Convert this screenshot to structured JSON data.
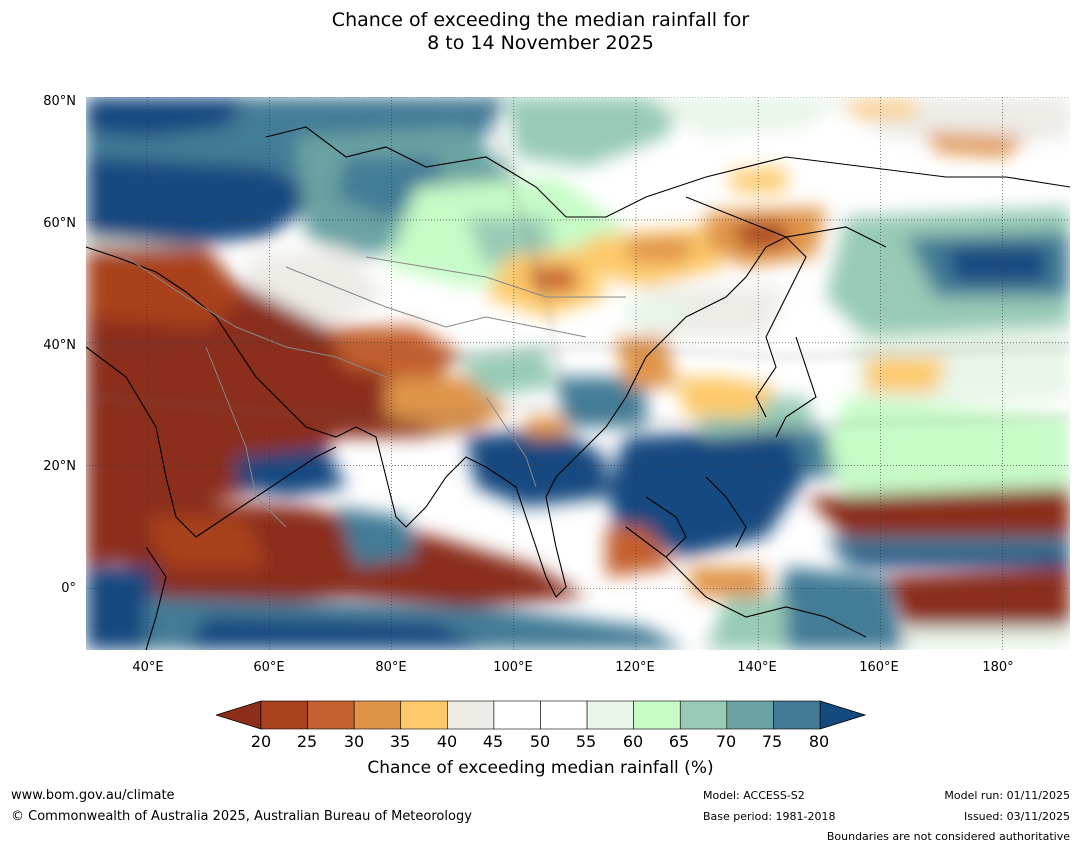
{
  "title": {
    "line1": "Chance of exceeding the median rainfall for",
    "line2": "8 to 14 November 2025"
  },
  "map": {
    "lat_labels": [
      "80°N",
      "60°N",
      "40°N",
      "20°N",
      "0°"
    ],
    "lon_labels": [
      "40°E",
      "60°E",
      "80°E",
      "100°E",
      "120°E",
      "140°E",
      "160°E",
      "180°"
    ],
    "extent": {
      "lon_min": 30,
      "lon_max": 191,
      "lat_min": -10,
      "lat_max": 80
    }
  },
  "colorbar": {
    "ticks": [
      "20",
      "25",
      "30",
      "35",
      "40",
      "45",
      "50",
      "55",
      "60",
      "65",
      "70",
      "75",
      "80"
    ],
    "colors": [
      "#8b2e1a",
      "#a9431f",
      "#c4612e",
      "#e0944a",
      "#fdc96a",
      "#edebe6",
      "#ffffff",
      "#ffffff",
      "#e8f5e8",
      "#c6fbc6",
      "#97cbb5",
      "#6aa3a3",
      "#437b96",
      "#154a80"
    ],
    "label": "Chance of exceeding median rainfall (%)"
  },
  "footer": {
    "website": "www.bom.gov.au/climate",
    "copyright": "© Commonwealth of Australia 2025, Australian Bureau of Meteorology",
    "model": "Model: ACCESS-S2",
    "base_period": "Base period: 1981-2018",
    "model_run": "Model run: 01/11/2025",
    "issued": "Issued: 03/11/2025",
    "disclaimer": "Boundaries are not considered authoritative"
  }
}
